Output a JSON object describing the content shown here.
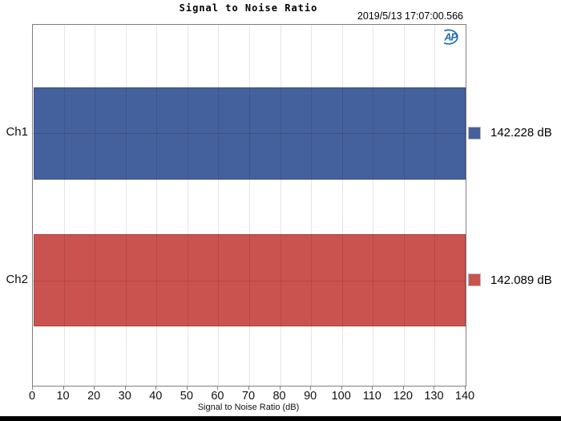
{
  "header": {
    "title": "Signal to Noise Ratio",
    "timestamp": "2019/5/13 17:07:00.566"
  },
  "logo": {
    "text": "AP",
    "color": "#1C6FAD"
  },
  "chart_data": {
    "type": "bar",
    "orientation": "horizontal",
    "title": "Signal to Noise Ratio",
    "xlabel": "Signal to Noise Ratio (dB)",
    "categories": [
      "Ch1",
      "Ch2"
    ],
    "values": [
      142.228,
      142.089
    ],
    "value_labels": [
      "142.228 dB",
      "142.089 dB"
    ],
    "series_colors": [
      "#45619D",
      "#CB534F"
    ],
    "xlim": [
      0,
      140
    ],
    "x_ticks": [
      0,
      10,
      20,
      30,
      40,
      50,
      60,
      70,
      80,
      90,
      100,
      110,
      120,
      130,
      140
    ],
    "grid": true,
    "legend_position": "right",
    "bars_clipped_at_axis_max": true
  }
}
